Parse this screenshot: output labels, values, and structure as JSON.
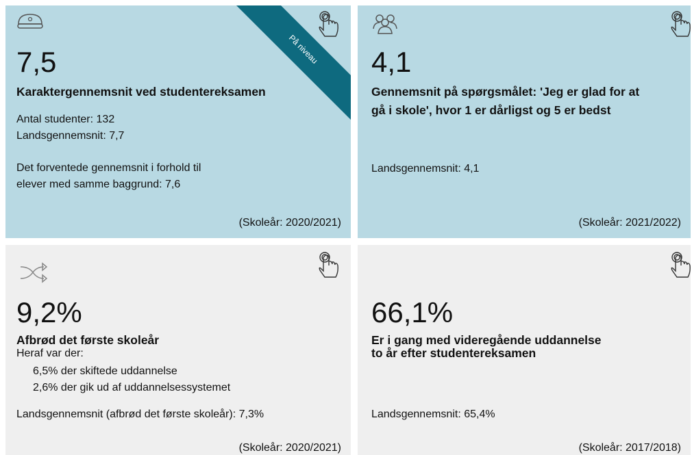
{
  "cards": [
    {
      "value": "7,5",
      "ribbon": "På niveau",
      "title_lines": [
        "Karaktergennemsnit ved studentereksamen"
      ],
      "details": [
        "Antal studenter: 132",
        "Landsgennemsnit: 7,7",
        "Det forventede gennemsnit i forhold til",
        "elever med samme baggrund: 7,6"
      ],
      "footer": "(Skoleår: 2020/2021)"
    },
    {
      "value": "4,1",
      "title_lines": [
        "Gennemsnit på spørgsmålet: 'Jeg er glad for at",
        "gå i skole', hvor 1 er dårligst og 5 er bedst"
      ],
      "details": [
        "Landsgennemsnit: 4,1"
      ],
      "footer": "(Skoleår: 2021/2022)"
    },
    {
      "value": "9,2%",
      "title_lines": [
        "Afbrød det første skoleår"
      ],
      "details": [
        "Heraf var der:",
        "6,5% der skiftede uddannelse",
        "2,6% der gik ud af uddannelsessystemet",
        "Landsgennemsnit (afbrød det første skoleår): 7,3%"
      ],
      "footer": "(Skoleår: 2020/2021)"
    },
    {
      "value": "66,1%",
      "title_lines": [
        "Er i gang med videregående uddannelse",
        "to år efter studentereksamen"
      ],
      "details": [
        "Landsgennemsnit: 65,4%"
      ],
      "footer": "(Skoleår: 2017/2018)"
    }
  ]
}
